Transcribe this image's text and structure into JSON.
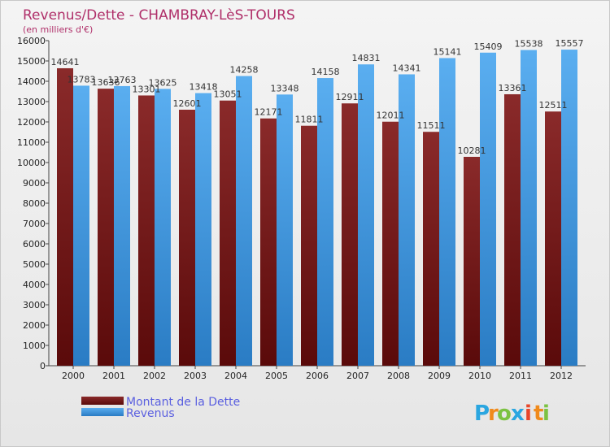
{
  "chart_data": {
    "type": "bar",
    "title": "Revenus/Dette - CHAMBRAY-LèS-TOURS",
    "subtitle": "(en milliers d'€)",
    "categories": [
      "2000",
      "2001",
      "2002",
      "2003",
      "2004",
      "2005",
      "2006",
      "2007",
      "2008",
      "2009",
      "2010",
      "2011",
      "2012"
    ],
    "series": [
      {
        "name": "Montant de la Dette",
        "color": "#7a1c1c",
        "values": [
          14641,
          13636,
          13301,
          12601,
          13051,
          12171,
          11811,
          12911,
          12011,
          11511,
          10281,
          13361,
          12511
        ],
        "labels": [
          "14641",
          "13636",
          "13301",
          "12601",
          "13051",
          "12171",
          "11811",
          "12911",
          "12011",
          "11511",
          "10281",
          "13361",
          "12511"
        ]
      },
      {
        "name": "Revenus",
        "color": "#3c8fd8",
        "values": [
          13783,
          13763,
          13625,
          13418,
          14258,
          13348,
          14158,
          14831,
          14341,
          15141,
          15409,
          15538,
          15557
        ],
        "labels": [
          "13783",
          "13763",
          "13625",
          "13418",
          "14258",
          "13348",
          "14158",
          "14831",
          "14341",
          "15141",
          "15409",
          "15538",
          "15557"
        ]
      }
    ],
    "ylim": [
      0,
      16000
    ],
    "ytick_step": 1000,
    "grid": false,
    "legend_position": "bottom-left"
  },
  "logo": {
    "text": "Proxiti",
    "letters": [
      "P",
      "r",
      "o",
      "x",
      "i",
      "t",
      "i"
    ],
    "colors": [
      "#2aa6e0",
      "#f08a1c",
      "#7cc242",
      "#2aa6e0",
      "#e8462a",
      "#f08a1c",
      "#7cc242"
    ]
  }
}
